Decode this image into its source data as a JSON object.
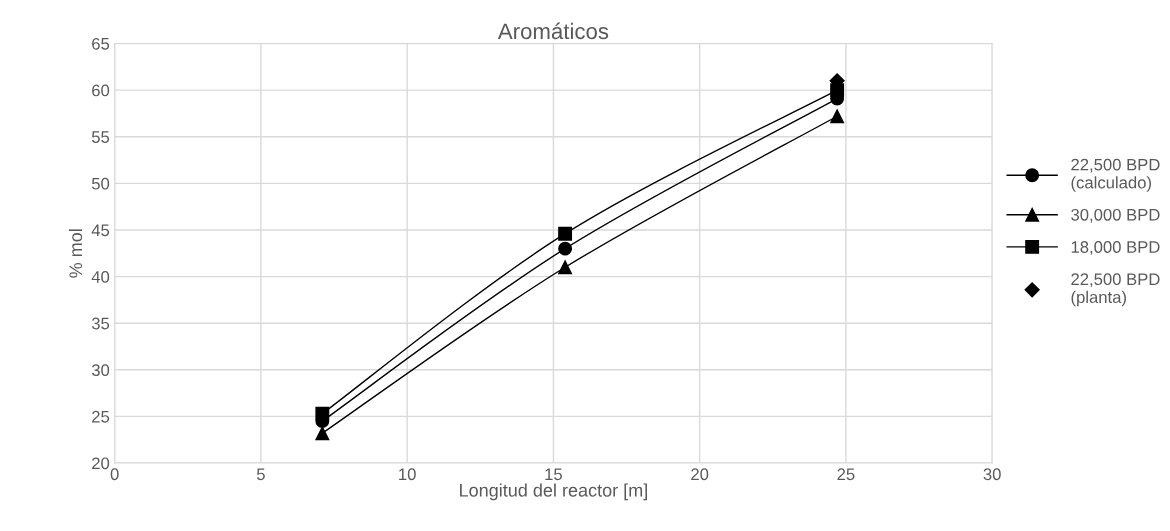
{
  "chart_data": {
    "type": "line",
    "title": "Aromáticos",
    "xlabel": "Longitud del reactor [m]",
    "ylabel": "% mol",
    "xlim": [
      0,
      30
    ],
    "xticks": [
      0,
      5,
      10,
      15,
      20,
      25,
      30
    ],
    "ylim": [
      20,
      65
    ],
    "yticks": [
      20,
      25,
      30,
      35,
      40,
      45,
      50,
      55,
      60,
      65
    ],
    "grid": true,
    "legend": "right",
    "x": [
      7.1,
      15.4,
      24.7
    ],
    "series": [
      {
        "name": "22,500 BPD\n(calculado)",
        "color": "#000000",
        "marker": "circle",
        "values": [
          24.5,
          43.0,
          59.1
        ]
      },
      {
        "name": "30,000 BPD",
        "color": "#000000",
        "marker": "triangle",
        "values": [
          23.2,
          41.0,
          57.2
        ]
      },
      {
        "name": "18,000 BPD",
        "color": "#000000",
        "marker": "square",
        "values": [
          25.3,
          44.6,
          60.0
        ]
      },
      {
        "name": "22,500 BPD\n(planta)",
        "color": "#000000",
        "marker": "diamond",
        "type": "scatter",
        "x": [
          24.7
        ],
        "values": [
          61.0
        ]
      }
    ]
  }
}
